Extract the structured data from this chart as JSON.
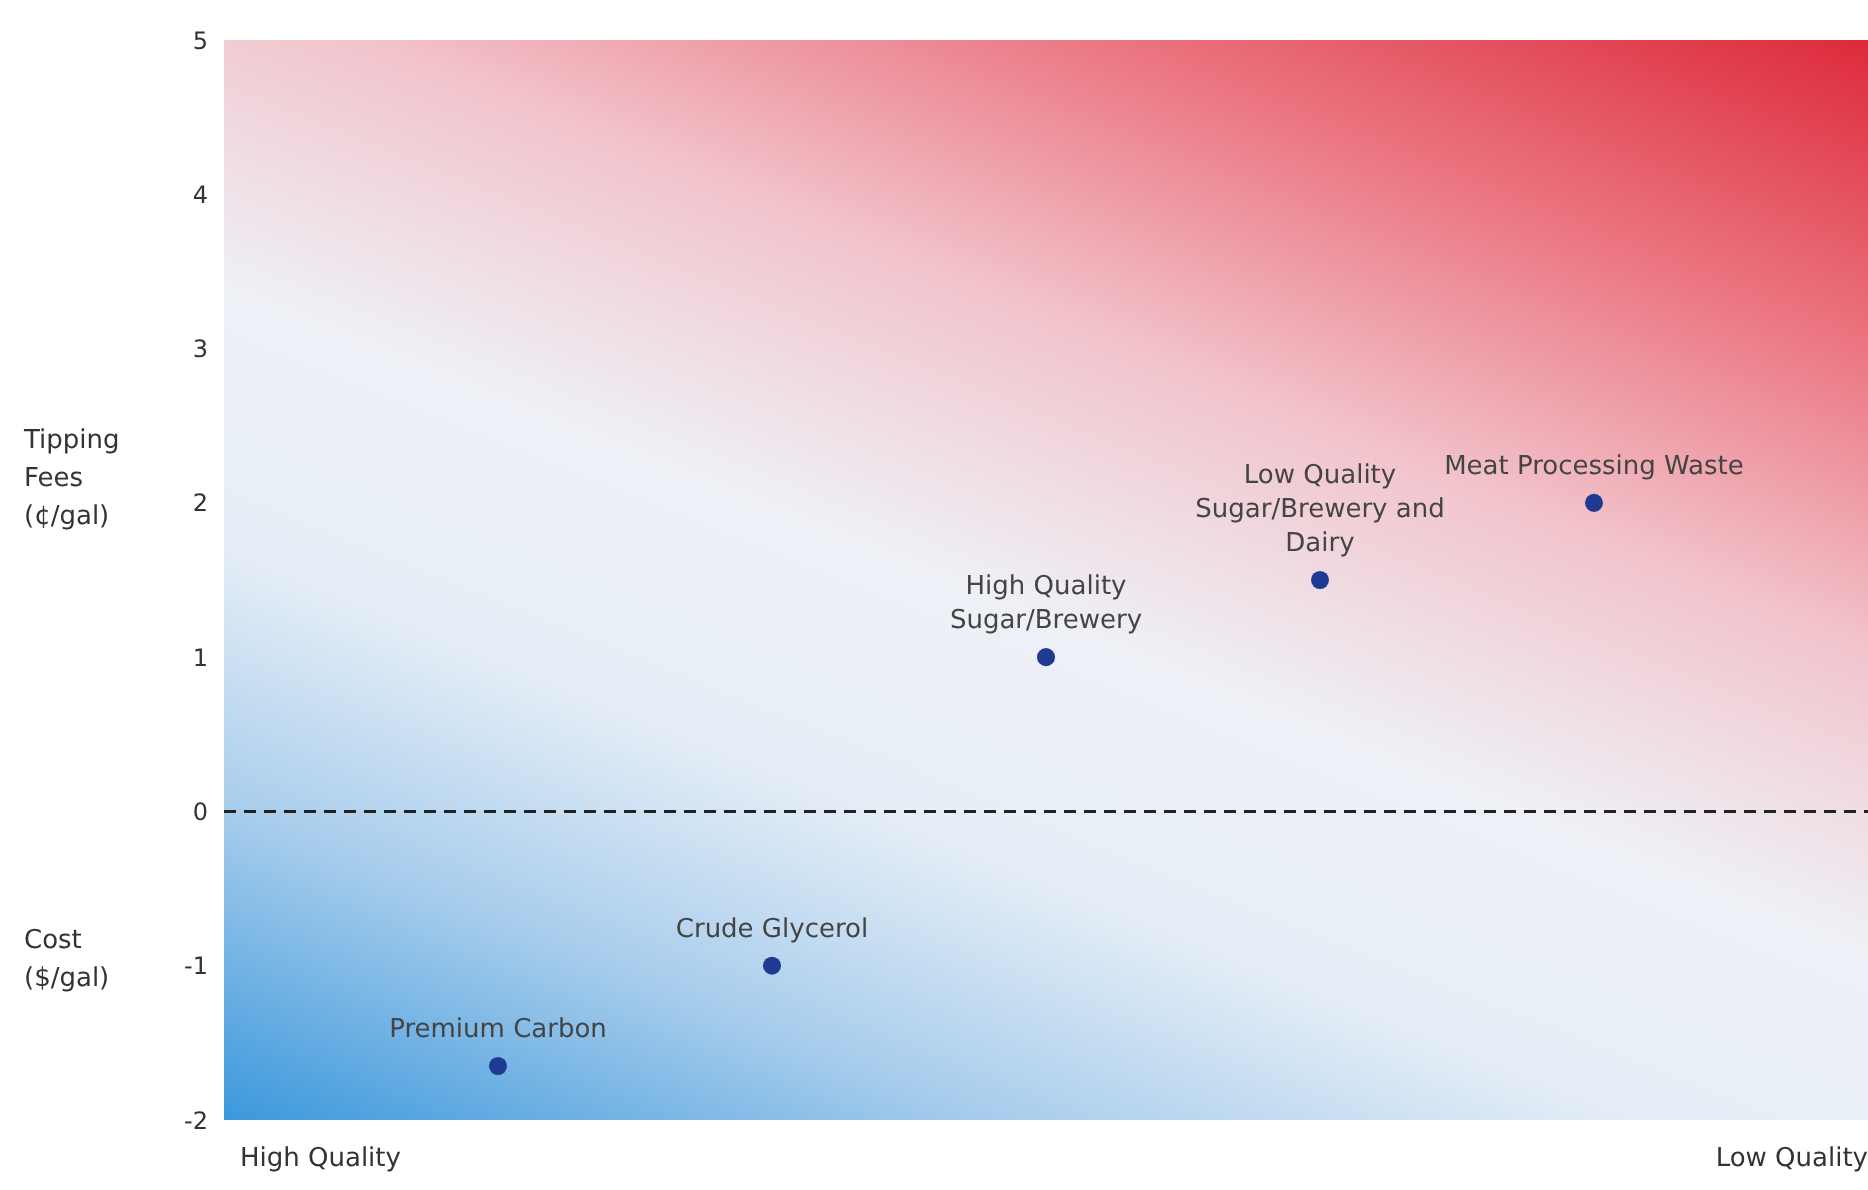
{
  "chart_data": {
    "type": "scatter",
    "categories": [
      null,
      null,
      null,
      null,
      null
    ],
    "series": [
      {
        "name": "Premium Carbon",
        "color": "#1f3a93",
        "values": [
          -1.65,
          null,
          null,
          null,
          null
        ]
      },
      {
        "name": "Crude Glycerol",
        "color": "#1f3a93",
        "values": [
          null,
          -1,
          null,
          null,
          null
        ]
      },
      {
        "name": "High Quality Sugar/Brewery",
        "color": "#1f3a93",
        "values": [
          null,
          null,
          1,
          null,
          null
        ]
      },
      {
        "name": "Low Quality Sugar/Brewery and Dairy",
        "color": "#1f3a93",
        "values": [
          null,
          null,
          null,
          1.5,
          null
        ]
      },
      {
        "name": "Meat Processing Waste",
        "color": "#1f3a93",
        "values": [
          null,
          null,
          null,
          null,
          2
        ]
      }
    ],
    "ylim": [
      -2,
      5
    ],
    "yticks": [
      -2,
      -1,
      0,
      1,
      2,
      3,
      4,
      5
    ],
    "marker": "circle",
    "tick_labels": "y",
    "ref_lines": [
      {
        "axis": "y",
        "value": 0,
        "line_style": "dashed",
        "color": "#222222"
      }
    ],
    "annotations": [
      "Tipping Fees (¢/gal)",
      "Cost ($/gal)",
      "High Quality",
      "Low Quality"
    ]
  }
}
